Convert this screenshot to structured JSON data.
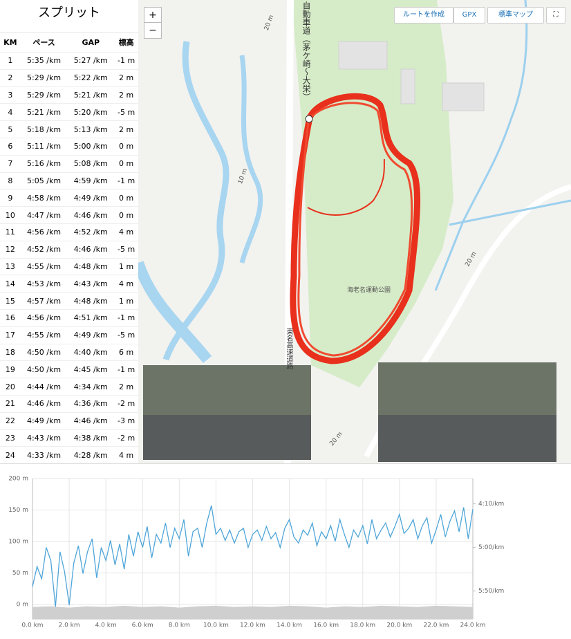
{
  "splits": {
    "title": "スプリット",
    "columns": [
      "KM",
      "ペース",
      "GAP",
      "標高"
    ],
    "rows": [
      [
        "1",
        "5:35 /km",
        "5:27 /km",
        "-1 m"
      ],
      [
        "2",
        "5:29 /km",
        "5:22 /km",
        "2 m"
      ],
      [
        "3",
        "5:29 /km",
        "5:21 /km",
        "2 m"
      ],
      [
        "4",
        "5:21 /km",
        "5:20 /km",
        "-5 m"
      ],
      [
        "5",
        "5:18 /km",
        "5:13 /km",
        "2 m"
      ],
      [
        "6",
        "5:11 /km",
        "5:00 /km",
        "0 m"
      ],
      [
        "7",
        "5:16 /km",
        "5:08 /km",
        "0 m"
      ],
      [
        "8",
        "5:05 /km",
        "4:59 /km",
        "-1 m"
      ],
      [
        "9",
        "4:58 /km",
        "4:49 /km",
        "0 m"
      ],
      [
        "10",
        "4:47 /km",
        "4:46 /km",
        "0 m"
      ],
      [
        "11",
        "4:56 /km",
        "4:52 /km",
        "4 m"
      ],
      [
        "12",
        "4:52 /km",
        "4:46 /km",
        "-5 m"
      ],
      [
        "13",
        "4:55 /km",
        "4:48 /km",
        "1 m"
      ],
      [
        "14",
        "4:53 /km",
        "4:43 /km",
        "4 m"
      ],
      [
        "15",
        "4:57 /km",
        "4:48 /km",
        "1 m"
      ],
      [
        "16",
        "4:56 /km",
        "4:51 /km",
        "-1 m"
      ],
      [
        "17",
        "4:55 /km",
        "4:49 /km",
        "-5 m"
      ],
      [
        "18",
        "4:50 /km",
        "4:40 /km",
        "6 m"
      ],
      [
        "19",
        "4:50 /km",
        "4:45 /km",
        "-1 m"
      ],
      [
        "20",
        "4:44 /km",
        "4:34 /km",
        "2 m"
      ],
      [
        "21",
        "4:46 /km",
        "4:36 /km",
        "-2 m"
      ],
      [
        "22",
        "4:49 /km",
        "4:46 /km",
        "-3 m"
      ],
      [
        "23",
        "4:43 /km",
        "4:38 /km",
        "-2 m"
      ],
      [
        "24",
        "4:33 /km",
        "4:28 /km",
        "4 m"
      ]
    ]
  },
  "map": {
    "zoom_in": "+",
    "zoom_out": "−",
    "route_button": "ルートを作成",
    "gpx_button": "GPX",
    "style_button": "標準マップ",
    "park_label": "海老名運動公園",
    "road_label": "自動車道（茅ケ崎～大栄）",
    "highway_label": "東名高速道路",
    "contour_labels": [
      "20 m",
      "10 m",
      "20 m",
      "20 m"
    ]
  },
  "chart": {
    "type": "line",
    "xlim": [
      0,
      24
    ],
    "xticks": [
      {
        "value": 0,
        "label": "0.0 km"
      },
      {
        "value": 2,
        "label": "2.0 km"
      },
      {
        "value": 4,
        "label": "4.0 km"
      },
      {
        "value": 6,
        "label": "6.0 km"
      },
      {
        "value": 8,
        "label": "8.0 km"
      },
      {
        "value": 10,
        "label": "10.0 km"
      },
      {
        "value": 12,
        "label": "12.0 km"
      },
      {
        "value": 14,
        "label": "14.0 km"
      },
      {
        "value": 16,
        "label": "16.0 km"
      },
      {
        "value": 18,
        "label": "18.0 km"
      },
      {
        "value": 20,
        "label": "20.0 km"
      },
      {
        "value": 22,
        "label": "22.0 km"
      },
      {
        "value": 24,
        "label": "24.0 km"
      }
    ],
    "ylim": [
      -23,
      200
    ],
    "yticks": [
      {
        "value": 0,
        "label": "0 m"
      },
      {
        "value": 50,
        "label": "50 m"
      },
      {
        "value": 100,
        "label": "100 m"
      },
      {
        "value": 150,
        "label": "150 m"
      },
      {
        "value": 200,
        "label": "200 m"
      }
    ],
    "y2lim": [
      382,
      221
    ],
    "y2ticks": [
      {
        "value": 250,
        "label": "4:10/km"
      },
      {
        "value": 300,
        "label": "5:00/km"
      },
      {
        "value": 350,
        "label": "5:50/km"
      }
    ],
    "grid": true,
    "series": [
      {
        "color": "#cfcfcf",
        "area": true,
        "x": [
          0,
          1,
          2,
          3,
          4,
          5,
          6,
          7,
          8,
          9,
          10,
          11,
          12,
          13,
          14,
          15,
          16,
          17,
          18,
          19,
          20,
          21,
          22,
          23,
          24
        ],
        "values": [
          -4,
          -3,
          -5,
          -3,
          -4,
          -2,
          -4,
          -3,
          -5,
          -3,
          -2,
          -4,
          -3,
          -4,
          -2,
          -3,
          -5,
          -3,
          -4,
          -2,
          -3,
          -4,
          -2,
          -3,
          -4
        ]
      },
      {
        "color": "#4ea5d9",
        "axis": "y2",
        "x": [
          0,
          0.25,
          0.5,
          0.75,
          1,
          1.25,
          1.5,
          1.75,
          2,
          2.25,
          2.5,
          2.75,
          3,
          3.25,
          3.5,
          3.75,
          4,
          4.25,
          4.5,
          4.75,
          5,
          5.25,
          5.5,
          5.75,
          6,
          6.25,
          6.5,
          6.75,
          7,
          7.25,
          7.5,
          7.75,
          8,
          8.25,
          8.5,
          8.75,
          9,
          9.25,
          9.5,
          9.75,
          10,
          10.25,
          10.5,
          10.75,
          11,
          11.25,
          11.5,
          11.75,
          12,
          12.25,
          12.5,
          12.75,
          13,
          13.25,
          13.5,
          13.75,
          14,
          14.25,
          14.5,
          14.75,
          15,
          15.25,
          15.5,
          15.75,
          16,
          16.25,
          16.5,
          16.75,
          17,
          17.25,
          17.5,
          17.75,
          18,
          18.25,
          18.5,
          18.75,
          19,
          19.25,
          19.5,
          19.75,
          20,
          20.25,
          20.5,
          20.75,
          21,
          21.25,
          21.5,
          21.75,
          22,
          22.25,
          22.5,
          22.75,
          23,
          23.25,
          23.5,
          23.75,
          24
        ],
        "values": [
          345,
          322,
          336,
          300,
          315,
          368,
          305,
          328,
          366,
          318,
          298,
          330,
          305,
          290,
          335,
          300,
          315,
          292,
          320,
          296,
          325,
          285,
          310,
          282,
          300,
          276,
          312,
          285,
          295,
          272,
          300,
          278,
          290,
          268,
          310,
          282,
          278,
          300,
          272,
          252,
          285,
          278,
          292,
          280,
          295,
          282,
          278,
          300,
          285,
          280,
          292,
          276,
          290,
          283,
          300,
          278,
          268,
          288,
          295,
          280,
          286,
          272,
          298,
          282,
          290,
          275,
          293,
          268,
          285,
          300,
          280,
          288,
          275,
          296,
          268,
          290,
          280,
          272,
          288,
          276,
          262,
          284,
          278,
          268,
          290,
          275,
          266,
          295,
          280,
          262,
          288,
          270,
          258,
          282,
          254,
          290,
          256
        ]
      }
    ]
  }
}
